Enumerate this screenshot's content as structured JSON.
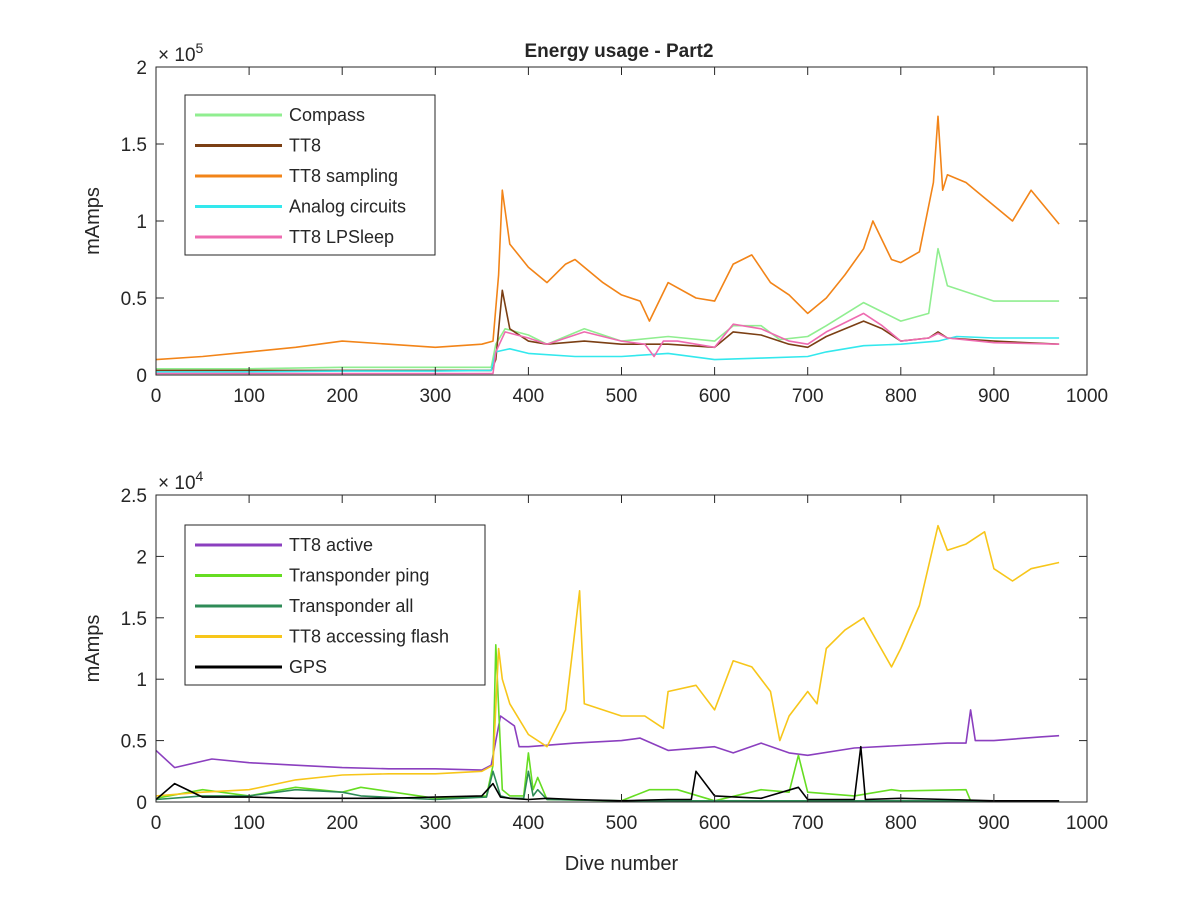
{
  "figure": {
    "title": "Energy usage - Part2"
  },
  "chart_data": [
    {
      "type": "line",
      "title": "Energy usage - Part2",
      "xlabel": "",
      "ylabel": "mAmps",
      "exponent_label": "× 10^5",
      "exponent_base": "× 10",
      "exponent_power": "5",
      "xlim": [
        0,
        1000
      ],
      "ylim": [
        0,
        200000
      ],
      "xticks": [
        0,
        100,
        200,
        300,
        400,
        500,
        600,
        700,
        800,
        900,
        1000
      ],
      "yticks": [
        0,
        50000,
        100000,
        150000,
        200000
      ],
      "ytick_labels": [
        "0",
        "0.5",
        "1",
        "1.5",
        "2"
      ],
      "grid": false,
      "legend_position": "top-left",
      "series": [
        {
          "name": "Compass",
          "color": "#90ee90",
          "x": [
            0,
            100,
            200,
            300,
            360,
            365,
            375,
            400,
            420,
            460,
            500,
            550,
            600,
            620,
            650,
            670,
            700,
            720,
            760,
            780,
            800,
            830,
            840,
            850,
            900,
            970
          ],
          "y": [
            4000,
            4000,
            5000,
            5000,
            5000,
            20000,
            30000,
            26000,
            20000,
            30000,
            22000,
            25000,
            22000,
            32000,
            32000,
            23000,
            25000,
            32000,
            47000,
            41000,
            35000,
            40000,
            82000,
            58000,
            48000,
            48000
          ]
        },
        {
          "name": "TT8",
          "color": "#7b3f14",
          "x": [
            0,
            100,
            200,
            300,
            360,
            365,
            372,
            380,
            400,
            420,
            460,
            500,
            550,
            600,
            620,
            650,
            680,
            700,
            720,
            760,
            780,
            800,
            830,
            840,
            850,
            900,
            970
          ],
          "y": [
            3000,
            3000,
            3000,
            3000,
            3000,
            10000,
            55000,
            30000,
            22000,
            20000,
            22000,
            20000,
            20000,
            18000,
            28000,
            26000,
            20000,
            18000,
            25000,
            35000,
            30000,
            22000,
            24000,
            28000,
            24000,
            22000,
            20000
          ]
        },
        {
          "name": "TT8 sampling",
          "color": "#f28418",
          "x": [
            0,
            50,
            100,
            150,
            200,
            250,
            300,
            350,
            362,
            368,
            372,
            380,
            400,
            420,
            440,
            450,
            480,
            500,
            520,
            530,
            550,
            580,
            600,
            620,
            640,
            660,
            680,
            700,
            720,
            740,
            760,
            770,
            790,
            800,
            820,
            835,
            840,
            845,
            850,
            870,
            880,
            900,
            920,
            940,
            970
          ],
          "y": [
            10000,
            12000,
            15000,
            18000,
            22000,
            20000,
            18000,
            20000,
            22000,
            65000,
            120000,
            85000,
            70000,
            60000,
            72000,
            75000,
            60000,
            52000,
            48000,
            35000,
            60000,
            50000,
            48000,
            72000,
            78000,
            60000,
            52000,
            40000,
            50000,
            65000,
            82000,
            100000,
            75000,
            73000,
            80000,
            125000,
            168000,
            120000,
            130000,
            125000,
            120000,
            110000,
            100000,
            120000,
            98000
          ]
        },
        {
          "name": "Analog circuits",
          "color": "#33e8ed",
          "x": [
            0,
            100,
            200,
            300,
            360,
            365,
            380,
            400,
            450,
            500,
            550,
            600,
            650,
            700,
            720,
            760,
            800,
            840,
            860,
            900,
            970
          ],
          "y": [
            2000,
            2000,
            2500,
            2500,
            3000,
            15000,
            17000,
            14000,
            12000,
            12000,
            14000,
            10000,
            11000,
            12000,
            15000,
            19000,
            20000,
            22000,
            25000,
            24000,
            24000
          ]
        },
        {
          "name": "TT8 LPSleep",
          "color": "#ee6bb0",
          "x": [
            0,
            100,
            200,
            300,
            362,
            365,
            375,
            400,
            420,
            460,
            500,
            525,
            535,
            545,
            560,
            600,
            620,
            650,
            680,
            700,
            720,
            760,
            780,
            800,
            830,
            840,
            850,
            900,
            970
          ],
          "y": [
            1000,
            1000,
            1000,
            1000,
            1000,
            15000,
            28000,
            24000,
            20000,
            28000,
            22000,
            20000,
            12000,
            22000,
            22000,
            18000,
            33000,
            30000,
            22000,
            20000,
            28000,
            40000,
            32000,
            22000,
            24000,
            27000,
            24000,
            21000,
            20000
          ]
        }
      ]
    },
    {
      "type": "line",
      "title": "",
      "xlabel": "Dive number",
      "ylabel": "mAmps",
      "exponent_label": "× 10^4",
      "exponent_base": "× 10",
      "exponent_power": "4",
      "xlim": [
        0,
        1000
      ],
      "ylim": [
        0,
        25000
      ],
      "xticks": [
        0,
        100,
        200,
        300,
        400,
        500,
        600,
        700,
        800,
        900,
        1000
      ],
      "yticks": [
        0,
        5000,
        10000,
        15000,
        20000,
        25000
      ],
      "ytick_labels": [
        "0",
        "0.5",
        "1",
        "1.5",
        "2",
        "2.5"
      ],
      "grid": false,
      "legend_position": "top-left",
      "series": [
        {
          "name": "TT8 active",
          "color": "#8b3fbf",
          "x": [
            0,
            20,
            60,
            100,
            150,
            200,
            250,
            300,
            350,
            360,
            370,
            385,
            390,
            400,
            450,
            500,
            520,
            550,
            600,
            620,
            650,
            680,
            700,
            750,
            800,
            850,
            870,
            875,
            880,
            900,
            950,
            970
          ],
          "y": [
            4200,
            2800,
            3500,
            3200,
            3000,
            2800,
            2700,
            2700,
            2600,
            3000,
            7000,
            6200,
            4500,
            4500,
            4800,
            5000,
            5200,
            4200,
            4500,
            4000,
            4800,
            4000,
            3800,
            4400,
            4600,
            4800,
            4800,
            7500,
            5000,
            5000,
            5300,
            5400
          ]
        },
        {
          "name": "Transponder ping",
          "color": "#66dd22",
          "x": [
            0,
            50,
            100,
            150,
            200,
            220,
            300,
            355,
            362,
            365,
            372,
            380,
            395,
            400,
            405,
            410,
            420,
            500,
            530,
            560,
            600,
            650,
            680,
            690,
            700,
            750,
            790,
            800,
            870,
            875,
            970
          ],
          "y": [
            300,
            1000,
            500,
            1200,
            800,
            1200,
            300,
            500,
            3000,
            12800,
            1000,
            500,
            500,
            4000,
            1000,
            2000,
            200,
            100,
            1000,
            1000,
            100,
            1000,
            800,
            3800,
            800,
            500,
            1000,
            900,
            1000,
            100,
            100
          ]
        },
        {
          "name": "Transponder all",
          "color": "#2e8b57",
          "x": [
            0,
            50,
            100,
            150,
            200,
            220,
            300,
            355,
            362,
            370,
            380,
            395,
            400,
            405,
            410,
            420,
            500,
            970
          ],
          "y": [
            200,
            500,
            500,
            1000,
            800,
            500,
            200,
            400,
            2500,
            500,
            300,
            300,
            2500,
            500,
            1000,
            200,
            100,
            100
          ]
        },
        {
          "name": "TT8 accessing flash",
          "color": "#f7c61a",
          "x": [
            0,
            50,
            100,
            150,
            200,
            250,
            300,
            350,
            362,
            368,
            372,
            380,
            400,
            420,
            440,
            455,
            460,
            480,
            500,
            525,
            545,
            550,
            580,
            600,
            620,
            640,
            660,
            670,
            680,
            700,
            710,
            720,
            740,
            760,
            790,
            800,
            820,
            840,
            850,
            870,
            890,
            900,
            920,
            940,
            970
          ],
          "y": [
            500,
            800,
            1000,
            1800,
            2200,
            2300,
            2300,
            2500,
            3000,
            12500,
            10000,
            8000,
            5500,
            4500,
            7500,
            17200,
            8000,
            7500,
            7000,
            7000,
            6000,
            9000,
            9500,
            7500,
            11500,
            11000,
            9000,
            5000,
            7000,
            9000,
            8000,
            12500,
            14000,
            15000,
            11000,
            12500,
            16000,
            22500,
            20500,
            21000,
            22000,
            19000,
            18000,
            19000,
            19500
          ]
        },
        {
          "name": "GPS",
          "color": "#000000",
          "x": [
            0,
            20,
            50,
            100,
            150,
            200,
            250,
            300,
            350,
            362,
            370,
            380,
            400,
            420,
            450,
            500,
            550,
            575,
            580,
            600,
            650,
            690,
            700,
            750,
            757,
            762,
            800,
            850,
            900,
            970
          ],
          "y": [
            200,
            1500,
            400,
            400,
            300,
            300,
            300,
            400,
            500,
            1500,
            400,
            300,
            200,
            300,
            200,
            100,
            200,
            200,
            2500,
            500,
            300,
            1200,
            200,
            200,
            4500,
            200,
            300,
            200,
            100,
            100
          ]
        }
      ]
    }
  ]
}
